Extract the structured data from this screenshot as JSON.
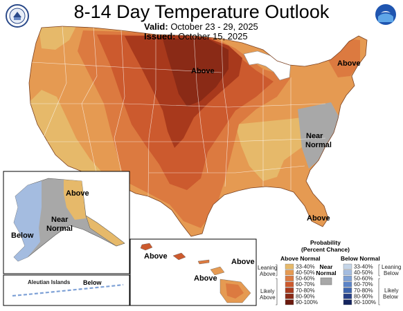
{
  "header": {
    "title": "8-14 Day Temperature Outlook",
    "valid_label": "Valid:",
    "valid_value": "October 23 - 29, 2025",
    "issued_label": "Issued:",
    "issued_value": "October 15, 2025",
    "noaa_logo_text": "NOAA"
  },
  "map_labels": {
    "conus_above_north": "Above",
    "conus_above_northeast": "Above",
    "conus_near_normal_1": "Near",
    "conus_near_normal_2": "Normal",
    "conus_above_florida": "Above",
    "alaska_above": "Above",
    "alaska_near_1": "Near",
    "alaska_near_2": "Normal",
    "alaska_below": "Below",
    "aleutian_title": "Aleutian Islands",
    "aleutian_below": "Below",
    "hawaii_above_1": "Above",
    "hawaii_above_2": "Above",
    "hawaii_above_3": "Above"
  },
  "legend": {
    "title_1": "Probability",
    "title_2": "(Percent Chance)",
    "above_header": "Above Normal",
    "below_header": "Below Normal",
    "near_1": "Near",
    "near_2": "Normal",
    "leaning_above_1": "Leaning",
    "leaning_above_2": "Above",
    "likely_above_1": "Likely",
    "likely_above_2": "Above",
    "leaning_below_1": "Leaning",
    "leaning_below_2": "Below",
    "likely_below_1": "Likely",
    "likely_below_2": "Below",
    "above_bins": [
      "33-40%",
      "40-50%",
      "50-60%",
      "60-70%",
      "70-80%",
      "80-90%",
      "90-100%"
    ],
    "below_bins": [
      "33-40%",
      "40-50%",
      "50-60%",
      "60-70%",
      "70-80%",
      "80-90%",
      "90-100%"
    ],
    "above_colors": [
      "#e6b96a",
      "#e59a52",
      "#dc7a40",
      "#cc5a2e",
      "#a8391c",
      "#8a2a16",
      "#6a1a0e"
    ],
    "below_colors": [
      "#c5d5e8",
      "#a4bce0",
      "#7ea1d6",
      "#5b83c6",
      "#3b63ad",
      "#253f86",
      "#14245e"
    ],
    "near_color": "#a8a8a8"
  }
}
